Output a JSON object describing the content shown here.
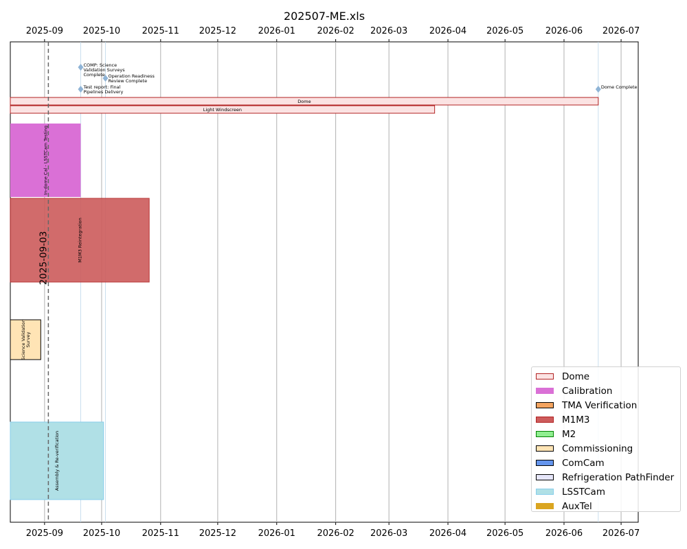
{
  "chart_data": {
    "type": "gantt",
    "title": "202507-ME.xls",
    "x_axis": {
      "type": "date",
      "range": [
        "2025-08-14",
        "2026-07-10"
      ],
      "ticks": [
        "2025-09",
        "2025-10",
        "2025-11",
        "2025-12",
        "2026-01",
        "2026-02",
        "2026-03",
        "2026-04",
        "2026-05",
        "2026-06",
        "2026-07"
      ],
      "grid": true
    },
    "today": {
      "date": "2025-09-03",
      "label": "2025-09-03"
    },
    "reference_dates": [
      "2025-09-20",
      "2025-10-03",
      "2026-06-19"
    ],
    "milestones": [
      {
        "label": "COMP: Science Validation Surveys Complete",
        "lines": [
          "COMP: Science",
          "Validation Surveys",
          "Complete"
        ],
        "date": "2025-09-20",
        "level": 0
      },
      {
        "label": "Operation Readiness Review Complete",
        "lines": [
          "Operation Readiness",
          "Review Complete"
        ],
        "date": "2025-10-03",
        "level": 1
      },
      {
        "label": "Test report: Final Pipelines Delivery",
        "lines": [
          "Test report: Final",
          "Pipelines Delivery"
        ],
        "date": "2025-09-20",
        "level": 2
      },
      {
        "label": "Dome Complete",
        "lines": [
          "Dome Complete"
        ],
        "date": "2026-06-19",
        "level": 2
      }
    ],
    "tasks": [
      {
        "label": "Dome",
        "group": "Dome",
        "start": "2025-08-14",
        "end": "2026-06-19",
        "row": 0,
        "label_orientation": "horizontal"
      },
      {
        "label": "Light Windscreen",
        "group": "Dome",
        "start": "2025-08-14",
        "end": "2026-03-25",
        "row": 1,
        "label_orientation": "horizontal"
      },
      {
        "label": "In-dome Cal - LSSTCam Testing",
        "group": "Calibration",
        "start": "2025-08-14",
        "end": "2025-09-20",
        "row": 2,
        "label_orientation": "vertical"
      },
      {
        "label": "M1M3 Reintegration",
        "group": "M1M3",
        "start": "2025-08-14",
        "end": "2025-10-26",
        "row": 3,
        "label_orientation": "vertical"
      },
      {
        "label": "Science Validation Survey",
        "lines": [
          "Science Validation",
          "Survey"
        ],
        "group": "Commissioning",
        "start": "2025-08-14",
        "end": "2025-08-30",
        "row": 4,
        "label_orientation": "vertical"
      },
      {
        "label": "Assembly & Re-verification",
        "group": "LSSTCam",
        "start": "2025-08-14",
        "end": "2025-10-02",
        "row": 5,
        "label_orientation": "vertical"
      }
    ],
    "legend": {
      "position": "bottom-right",
      "items": [
        {
          "name": "Dome",
          "fill": "#fbe3e3",
          "edge": "#b22222"
        },
        {
          "name": "Calibration",
          "fill": "#da70d6",
          "edge": "none"
        },
        {
          "name": "TMA Verification",
          "fill": "#f4a460",
          "edge": "#000000"
        },
        {
          "name": "M1M3",
          "fill": "#cd5c5c",
          "edge": "#b22222"
        },
        {
          "name": "M2",
          "fill": "#90ee90",
          "edge": "#008000"
        },
        {
          "name": "Commissioning",
          "fill": "#ffe4b5",
          "edge": "#000000"
        },
        {
          "name": "ComCam",
          "fill": "#6495ed",
          "edge": "#000000"
        },
        {
          "name": "Refrigeration PathFinder",
          "fill": "#e6e6fa",
          "edge": "#000000"
        },
        {
          "name": "LSSTCam",
          "fill": "#b0e0e6",
          "edge": "#87ceeb"
        },
        {
          "name": "AuxTel",
          "fill": "#daa520",
          "edge": "none"
        }
      ]
    }
  }
}
